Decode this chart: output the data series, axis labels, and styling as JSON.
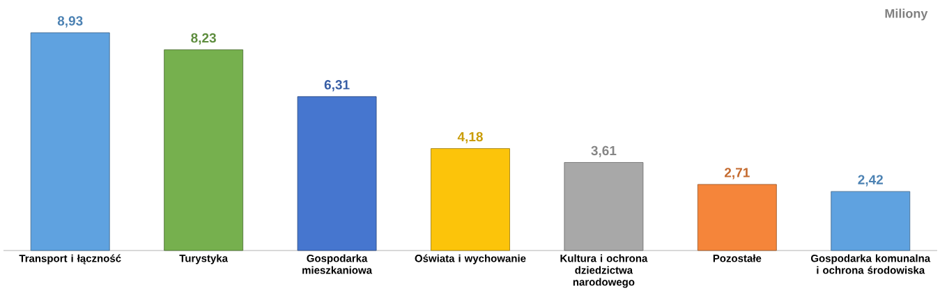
{
  "chart_data": {
    "type": "bar",
    "ylabel": "Miliony",
    "categories": [
      "Transport i łączność",
      "Turystyka",
      "Gospodarka mieszkaniowa",
      "Oświata i wychowanie",
      "Kultura i ochrona dziedzictwa narodowego",
      "Pozostałe",
      "Gospodarka komunalna i ochrona środowiska"
    ],
    "values": [
      8.93,
      8.23,
      6.31,
      4.18,
      3.61,
      2.71,
      2.42
    ],
    "colors": [
      "#5fa2e0",
      "#76b04e",
      "#4676cf",
      "#fcc40a",
      "#a8a8a8",
      "#f5853a",
      "#5fa2e0"
    ],
    "value_labels": [
      "8,93",
      "8,23",
      "6,31",
      "4,18",
      "3,61",
      "2,71",
      "2,42"
    ]
  }
}
